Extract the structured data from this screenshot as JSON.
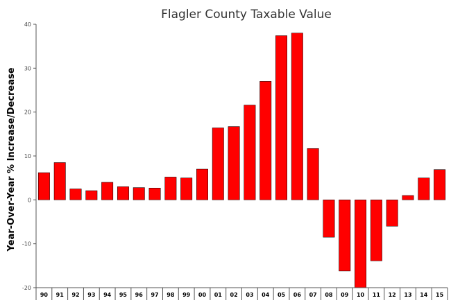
{
  "chart_data": {
    "type": "bar",
    "title": "Flagler County Taxable Value",
    "xlabel": "",
    "ylabel": "Year-Over-Year % Increase/Decrease",
    "ylim": [
      -20,
      40
    ],
    "yticks": [
      40,
      30,
      20,
      10,
      0,
      -10,
      -20
    ],
    "ytick_labels": [
      "40",
      "30",
      "20",
      "10",
      "0",
      "-10",
      "-20"
    ],
    "categories": [
      "90",
      "91",
      "92",
      "93",
      "94",
      "95",
      "96",
      "97",
      "98",
      "99",
      "00",
      "01",
      "02",
      "03",
      "04",
      "05",
      "06",
      "07",
      "08",
      "09",
      "10",
      "11",
      "12",
      "13",
      "14",
      "15"
    ],
    "values": [
      6.2,
      8.5,
      2.5,
      2.1,
      4.0,
      3.0,
      2.8,
      2.7,
      5.2,
      5.0,
      7.0,
      16.4,
      16.7,
      21.6,
      27.0,
      37.4,
      38.0,
      11.7,
      -8.5,
      -16.2,
      -20.0,
      -13.9,
      -6.0,
      1.0,
      5.0,
      6.9
    ],
    "bar_color": "#ff0000",
    "bar_stroke": "#000000",
    "grid": false,
    "legend": false
  }
}
